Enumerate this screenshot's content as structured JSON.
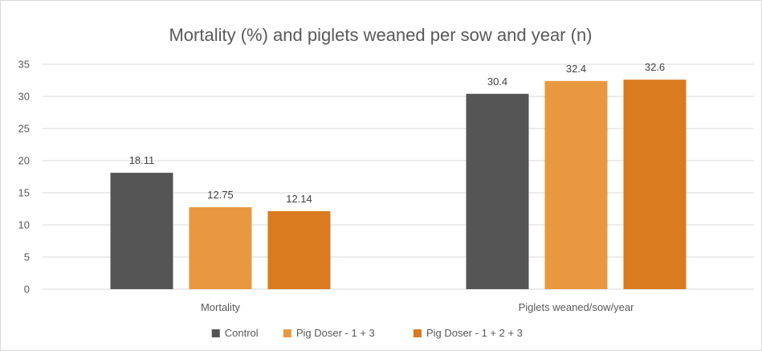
{
  "chart_data": {
    "type": "bar",
    "title": "Mortality (%) and piglets weaned per sow and year (n)",
    "categories": [
      "Mortality",
      "Piglets weaned/sow/year"
    ],
    "series": [
      {
        "name": "Control",
        "values": [
          18.11,
          30.4
        ],
        "labels": [
          "18.11",
          "30.4"
        ],
        "color": "#555555"
      },
      {
        "name": "Pig Doser - 1 + 3",
        "values": [
          12.75,
          32.4
        ],
        "labels": [
          "12.75",
          "32.4"
        ],
        "color": "#E8993F"
      },
      {
        "name": "Pig Doser - 1 + 2 + 3",
        "values": [
          12.14,
          32.6
        ],
        "labels": [
          "12.14",
          "32.6"
        ],
        "color": "#D97B1E"
      }
    ],
    "ylim": [
      0,
      35
    ],
    "yticks": [
      "0",
      "5",
      "10",
      "15",
      "20",
      "25",
      "30",
      "35"
    ],
    "xlabel": "",
    "ylabel": "",
    "grid": true,
    "legend_position": "bottom"
  }
}
